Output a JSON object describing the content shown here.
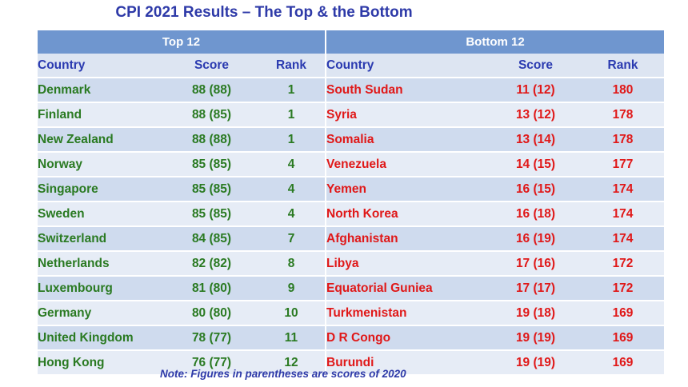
{
  "title": "CPI 2021 Results – The Top & the Bottom",
  "groups": {
    "top": "Top  12",
    "bottom": "Bottom  12"
  },
  "columns": {
    "country": "Country",
    "score": "Score",
    "rank": "Rank"
  },
  "top": [
    {
      "country": "Denmark",
      "score": "88 (88)",
      "rank": "1"
    },
    {
      "country": "Finland",
      "score": "88 (85)",
      "rank": "1"
    },
    {
      "country": "New Zealand",
      "score": "88 (88)",
      "rank": "1"
    },
    {
      "country": "Norway",
      "score": "85 (85)",
      "rank": "4"
    },
    {
      "country": "Singapore",
      "score": "85 (85)",
      "rank": "4"
    },
    {
      "country": "Sweden",
      "score": "85 (85)",
      "rank": "4"
    },
    {
      "country": "Switzerland",
      "score": "84 (85)",
      "rank": "7"
    },
    {
      "country": "Netherlands",
      "score": "82 (82)",
      "rank": "8"
    },
    {
      "country": "Luxembourg",
      "score": "81 (80)",
      "rank": "9"
    },
    {
      "country": "Germany",
      "score": "80 (80)",
      "rank": "10"
    },
    {
      "country": "United Kingdom",
      "score": "78 (77)",
      "rank": "11"
    },
    {
      "country": "Hong Kong",
      "score": "76 (77)",
      "rank": "12"
    }
  ],
  "bottom": [
    {
      "country": "South Sudan",
      "score": "11 (12)",
      "rank": "180"
    },
    {
      "country": "Syria",
      "score": "13 (12)",
      "rank": "178"
    },
    {
      "country": "Somalia",
      "score": "13 (14)",
      "rank": "178"
    },
    {
      "country": "Venezuela",
      "score": "14 (15)",
      "rank": "177"
    },
    {
      "country": "Yemen",
      "score": "16 (15)",
      "rank": "174"
    },
    {
      "country": "North Korea",
      "score": "16 (18)",
      "rank": "174"
    },
    {
      "country": "Afghanistan",
      "score": "16 (19)",
      "rank": "174"
    },
    {
      "country": "Libya",
      "score": "17 (16)",
      "rank": "172"
    },
    {
      "country": "Equatorial Guniea",
      "score": "17 (17)",
      "rank": "172"
    },
    {
      "country": "Turkmenistan",
      "score": "19 (18)",
      "rank": "169"
    },
    {
      "country": "D R Congo",
      "score": "19 (19)",
      "rank": "169"
    },
    {
      "country": "Burundi",
      "score": "19 (19)",
      "rank": "169"
    }
  ],
  "note": "Note: Figures in parentheses are scores of 2020",
  "colors": {
    "top_text": "#2a7a22",
    "bottom_text": "#e01818",
    "header_bar": "#6f96cf",
    "header_text": "#2a3ab0",
    "title": "#2e3aa8"
  }
}
